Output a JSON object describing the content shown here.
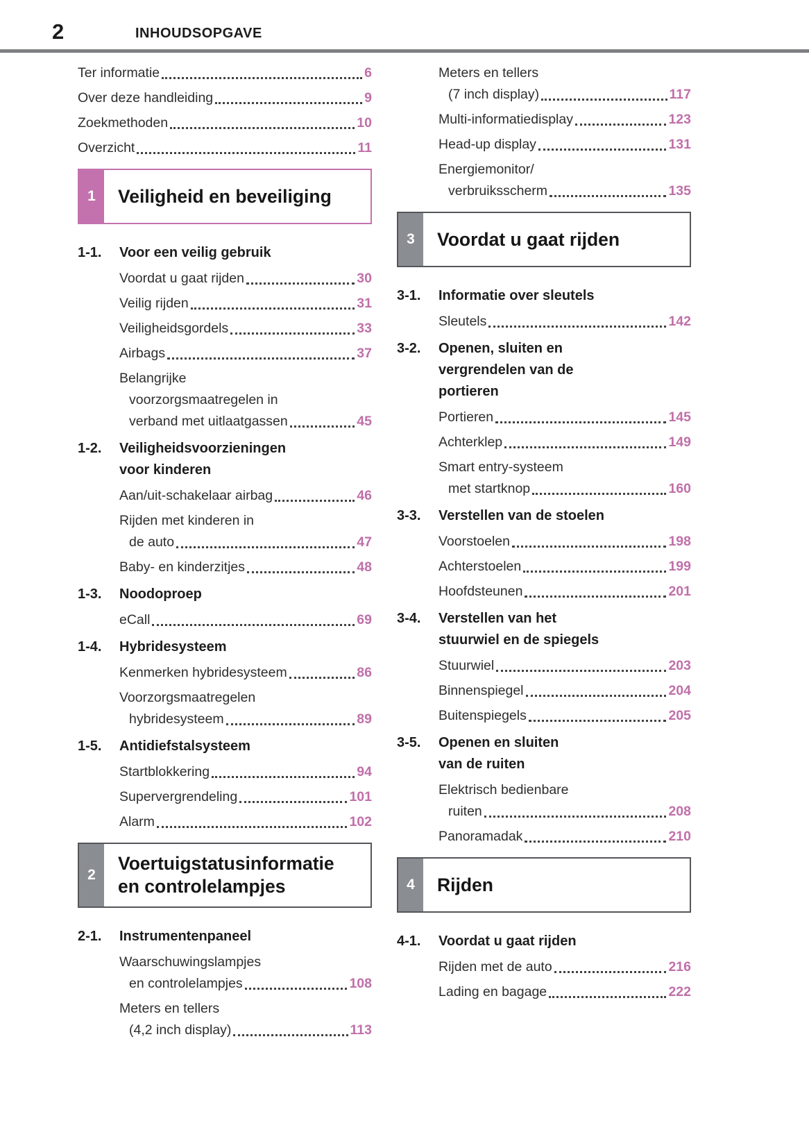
{
  "page": {
    "number": "2",
    "title": "INHOUDSOPGAVE"
  },
  "colors": {
    "accent_pink": "#c472ae",
    "page_number_pink": "#c06fa9",
    "tab_gray": "#8a8d92",
    "rule_gray": "#7d7f82",
    "box_border_dark": "#55565a",
    "text": "#2e2e2e"
  },
  "columns": [
    {
      "name": "left",
      "blocks": [
        {
          "type": "entries",
          "indent": false,
          "items": [
            {
              "lines": [
                "Ter informatie"
              ],
              "page": "6"
            },
            {
              "lines": [
                "Over deze handleiding"
              ],
              "page": "9"
            },
            {
              "lines": [
                "Zoekmethoden"
              ],
              "page": "10"
            },
            {
              "lines": [
                "Overzicht"
              ],
              "page": "11"
            }
          ]
        },
        {
          "type": "section",
          "num": "1",
          "accent": true,
          "title_lines": [
            "Veiligheid en beveiliging"
          ]
        },
        {
          "type": "sub",
          "label": "1-1.",
          "lines": [
            "Voor een veilig gebruik"
          ]
        },
        {
          "type": "entries",
          "indent": true,
          "items": [
            {
              "lines": [
                "Voordat u gaat rijden"
              ],
              "page": "30"
            },
            {
              "lines": [
                "Veilig rijden"
              ],
              "page": "31"
            },
            {
              "lines": [
                "Veiligheidsgordels"
              ],
              "page": "33"
            },
            {
              "lines": [
                "Airbags"
              ],
              "page": "37"
            },
            {
              "lines": [
                "Belangrijke",
                "voorzorgsmaatregelen in",
                "verband met uitlaatgassen"
              ],
              "page": "45"
            }
          ]
        },
        {
          "type": "sub",
          "label": "1-2.",
          "lines": [
            "Veiligheidsvoorzieningen",
            "voor kinderen"
          ]
        },
        {
          "type": "entries",
          "indent": true,
          "items": [
            {
              "lines": [
                "Aan/uit-schakelaar airbag"
              ],
              "page": "46"
            },
            {
              "lines": [
                "Rijden met kinderen in",
                "de auto"
              ],
              "page": "47"
            },
            {
              "lines": [
                "Baby- en kinderzitjes"
              ],
              "page": "48"
            }
          ]
        },
        {
          "type": "sub",
          "label": "1-3.",
          "lines": [
            "Noodoproep"
          ]
        },
        {
          "type": "entries",
          "indent": true,
          "items": [
            {
              "lines": [
                "eCall"
              ],
              "page": "69"
            }
          ]
        },
        {
          "type": "sub",
          "label": "1-4.",
          "lines": [
            "Hybridesysteem"
          ]
        },
        {
          "type": "entries",
          "indent": true,
          "items": [
            {
              "lines": [
                "Kenmerken hybridesysteem"
              ],
              "page": "86"
            },
            {
              "lines": [
                "Voorzorgsmaatregelen",
                "hybridesysteem"
              ],
              "page": "89"
            }
          ]
        },
        {
          "type": "sub",
          "label": "1-5.",
          "lines": [
            "Antidiefstalsysteem"
          ]
        },
        {
          "type": "entries",
          "indent": true,
          "items": [
            {
              "lines": [
                "Startblokkering"
              ],
              "page": "94"
            },
            {
              "lines": [
                "Supervergrendeling"
              ],
              "page": "101"
            },
            {
              "lines": [
                "Alarm"
              ],
              "page": "102"
            }
          ]
        },
        {
          "type": "section",
          "num": "2",
          "accent": false,
          "title_lines": [
            "Voertuigstatusinformatie",
            "en controlelampjes"
          ]
        },
        {
          "type": "sub",
          "label": "2-1.",
          "lines": [
            "Instrumentenpaneel"
          ]
        },
        {
          "type": "entries",
          "indent": true,
          "items": [
            {
              "lines": [
                "Waarschuwingslampjes",
                "en controlelampjes"
              ],
              "page": "108"
            },
            {
              "lines": [
                "Meters en tellers",
                "(4,2 inch display)"
              ],
              "page": "113"
            }
          ]
        }
      ]
    },
    {
      "name": "right",
      "blocks": [
        {
          "type": "entries",
          "indent": true,
          "items": [
            {
              "lines": [
                "Meters en tellers",
                "(7 inch display)"
              ],
              "page": "117"
            },
            {
              "lines": [
                "Multi-informatiedisplay"
              ],
              "page": "123"
            },
            {
              "lines": [
                "Head-up display"
              ],
              "page": "131"
            },
            {
              "lines": [
                "Energiemonitor/",
                "verbruiksscherm"
              ],
              "page": "135"
            }
          ]
        },
        {
          "type": "section",
          "num": "3",
          "accent": false,
          "title_lines": [
            "Voordat u gaat rijden"
          ]
        },
        {
          "type": "sub",
          "label": "3-1.",
          "lines": [
            "Informatie over sleutels"
          ]
        },
        {
          "type": "entries",
          "indent": true,
          "items": [
            {
              "lines": [
                "Sleutels"
              ],
              "page": "142"
            }
          ]
        },
        {
          "type": "sub",
          "label": "3-2.",
          "lines": [
            "Openen, sluiten en",
            "vergrendelen van de",
            "portieren"
          ]
        },
        {
          "type": "entries",
          "indent": true,
          "items": [
            {
              "lines": [
                "Portieren"
              ],
              "page": "145"
            },
            {
              "lines": [
                "Achterklep"
              ],
              "page": "149"
            },
            {
              "lines": [
                "Smart entry-systeem",
                "met startknop"
              ],
              "page": "160"
            }
          ]
        },
        {
          "type": "sub",
          "label": "3-3.",
          "lines": [
            "Verstellen van de stoelen"
          ]
        },
        {
          "type": "entries",
          "indent": true,
          "items": [
            {
              "lines": [
                "Voorstoelen"
              ],
              "page": "198"
            },
            {
              "lines": [
                "Achterstoelen"
              ],
              "page": "199"
            },
            {
              "lines": [
                "Hoofdsteunen"
              ],
              "page": "201"
            }
          ]
        },
        {
          "type": "sub",
          "label": "3-4.",
          "lines": [
            "Verstellen van het",
            "stuurwiel en de spiegels"
          ]
        },
        {
          "type": "entries",
          "indent": true,
          "items": [
            {
              "lines": [
                "Stuurwiel"
              ],
              "page": "203"
            },
            {
              "lines": [
                "Binnenspiegel"
              ],
              "page": "204"
            },
            {
              "lines": [
                "Buitenspiegels"
              ],
              "page": "205"
            }
          ]
        },
        {
          "type": "sub",
          "label": "3-5.",
          "lines": [
            "Openen en sluiten",
            "van de ruiten"
          ]
        },
        {
          "type": "entries",
          "indent": true,
          "items": [
            {
              "lines": [
                "Elektrisch bedienbare",
                "ruiten"
              ],
              "page": "208"
            },
            {
              "lines": [
                "Panoramadak"
              ],
              "page": "210"
            }
          ]
        },
        {
          "type": "section",
          "num": "4",
          "accent": false,
          "title_lines": [
            "Rijden"
          ]
        },
        {
          "type": "sub",
          "label": "4-1.",
          "lines": [
            "Voordat u gaat rijden"
          ]
        },
        {
          "type": "entries",
          "indent": true,
          "items": [
            {
              "lines": [
                "Rijden met de auto"
              ],
              "page": "216"
            },
            {
              "lines": [
                "Lading en bagage"
              ],
              "page": "222"
            }
          ]
        }
      ]
    }
  ]
}
